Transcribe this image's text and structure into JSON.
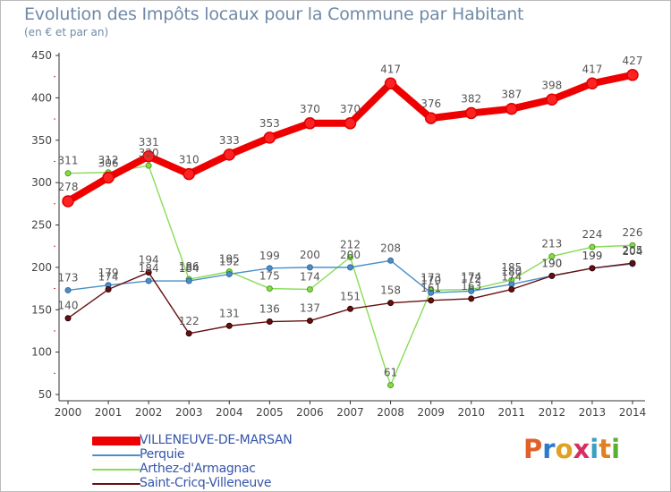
{
  "title": "Evolution des Impôts locaux pour la Commune par Habitant",
  "subtitle": "(en € et par an)",
  "logo": {
    "letters": [
      "P",
      "r",
      "o",
      "x",
      "i",
      "t",
      "i"
    ],
    "colors": [
      "#e0602a",
      "#2a7bd0",
      "#e0a020",
      "#d43060",
      "#3aa0c0",
      "#e08020",
      "#5ab030"
    ]
  },
  "chart_data": {
    "type": "line",
    "title": "Evolution des Impôts locaux pour la Commune par Habitant",
    "ylabel": "(en € et par an)",
    "xlabel": "",
    "categories": [
      "2000",
      "2001",
      "2002",
      "2003",
      "2004",
      "2005",
      "2006",
      "2007",
      "2008",
      "2009",
      "2010",
      "2011",
      "2012",
      "2013",
      "2014"
    ],
    "ylim": [
      50,
      450
    ],
    "yticks": [
      50,
      100,
      150,
      200,
      250,
      300,
      350,
      400,
      450
    ],
    "grid": false,
    "legend_position": "bottom-left",
    "series": [
      {
        "name": "VILLENEUVE-DE-MARSAN",
        "color": "#ee0000",
        "values": [
          278,
          306,
          331,
          310,
          333,
          353,
          370,
          370,
          417,
          376,
          382,
          387,
          398,
          417,
          427
        ],
        "labels": [
          "278",
          "306",
          "331",
          "310",
          "333",
          "353",
          "370",
          "370",
          "417",
          "376",
          "382",
          "387",
          "398",
          "417",
          "427"
        ]
      },
      {
        "name": "Perquie",
        "color": "#4a90c8",
        "values": [
          173,
          179,
          184,
          184,
          192,
          199,
          200,
          200,
          208,
          170,
          172,
          180,
          190,
          199,
          204
        ],
        "labels": [
          "173",
          "179",
          "184",
          "184",
          "192",
          "199",
          "200",
          "200",
          "208",
          "170",
          "172",
          "180",
          "190",
          "199",
          "204"
        ]
      },
      {
        "name": "Arthez-d'Armagnac",
        "color": "#88dd55",
        "values": [
          311,
          312,
          320,
          186,
          195,
          175,
          174,
          212,
          61,
          173,
          174,
          185,
          213,
          224,
          226
        ],
        "labels": [
          "311",
          "312",
          "320",
          "186",
          "195",
          "175",
          "174",
          "212",
          "61",
          "173",
          "174",
          "185",
          "213",
          "224",
          "226"
        ]
      },
      {
        "name": "Saint-Cricq-Villeneuve",
        "color": "#661111",
        "values": [
          140,
          174,
          194,
          122,
          131,
          136,
          137,
          151,
          158,
          161,
          163,
          174,
          190,
          199,
          205
        ],
        "labels": [
          "140",
          "174",
          "194",
          "122",
          "131",
          "136",
          "137",
          "151",
          "158",
          "161",
          "163",
          "174",
          "190",
          "199",
          "205"
        ]
      }
    ]
  }
}
